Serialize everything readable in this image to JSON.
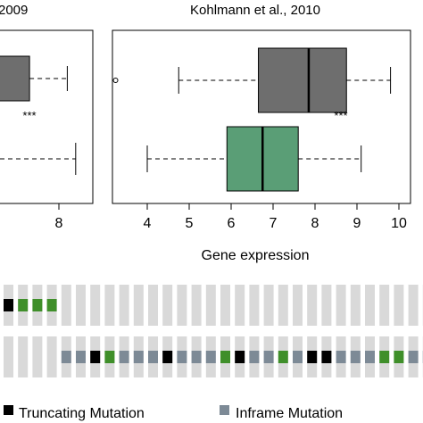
{
  "chart_data": [
    {
      "type": "boxplot",
      "title": "2009",
      "xlabel": "",
      "x_tick_labels": [
        "8"
      ],
      "boxes": [
        {
          "color": "#6e6e6e",
          "q3": 7.3,
          "whisker_high": 8.2,
          "outliers": []
        },
        {
          "color": "#5a9e76",
          "whisker_high": 8.4,
          "outliers": []
        }
      ],
      "significance_label": "***"
    },
    {
      "type": "boxplot",
      "title": "Kohlmann et al., 2010",
      "xlabel": "Gene expression",
      "xlim": [
        3.5,
        10.1
      ],
      "x_ticks": [
        4,
        5,
        6,
        7,
        8,
        9,
        10
      ],
      "x_tick_labels": [
        "4",
        "5",
        "6",
        "7",
        "8",
        "9",
        "10"
      ],
      "boxes": [
        {
          "color": "#6e6e6e",
          "whisker_low": 4.75,
          "q1": 6.65,
          "median": 7.85,
          "q3": 8.75,
          "whisker_high": 9.8,
          "outliers": [
            3.5
          ]
        },
        {
          "color": "#5a9e76",
          "whisker_low": 4.0,
          "q1": 5.9,
          "median": 6.75,
          "q3": 7.6,
          "whisker_high": 9.1,
          "outliers": []
        }
      ],
      "significance_label": "***"
    }
  ],
  "tracks": {
    "colors": {
      "none": "#d9d9d9",
      "truncating": "#000000",
      "inframe": "#7d8a96",
      "missense": "#3f8f2a"
    },
    "rows": [
      [
        "truncating",
        "missense",
        "missense",
        "missense",
        "none",
        "none",
        "none",
        "none",
        "none",
        "none",
        "none",
        "none",
        "none",
        "none",
        "none",
        "none",
        "none",
        "none",
        "none",
        "none",
        "none",
        "none",
        "none",
        "none",
        "none",
        "none",
        "none",
        "none",
        "none",
        "none"
      ],
      [
        "none",
        "none",
        "none",
        "none",
        "inframe",
        "inframe",
        "truncating",
        "missense",
        "inframe",
        "inframe",
        "inframe",
        "truncating",
        "inframe",
        "inframe",
        "inframe",
        "missense",
        "truncating",
        "inframe",
        "inframe",
        "missense",
        "inframe",
        "truncating",
        "truncating",
        "inframe",
        "inframe",
        "inframe",
        "missense",
        "missense",
        "inframe",
        "inframe"
      ]
    ]
  },
  "legend": [
    {
      "label": "Truncating Mutation",
      "color": "#000000"
    },
    {
      "label": "Inframe Mutation",
      "color": "#7d8a96"
    }
  ]
}
